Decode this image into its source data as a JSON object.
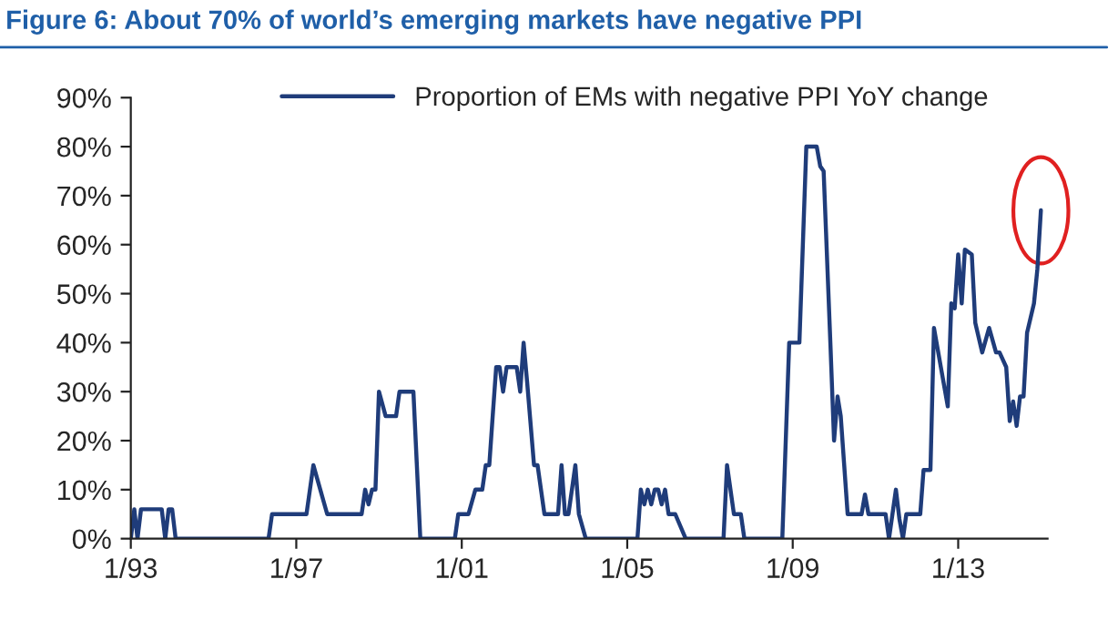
{
  "chart_data": {
    "type": "line",
    "title": "Figure 6: About 70% of world’s emerging markets have negative PPI",
    "series": [
      {
        "name": "Proportion of EMs with negative PPI YoY change",
        "color": "#1f3c7a",
        "x": [
          "1993-01",
          "1993-02",
          "1993-03",
          "1993-04",
          "1993-10",
          "1993-11",
          "1993-12",
          "1994-01",
          "1994-02",
          "1996-05",
          "1996-06",
          "1997-04",
          "1997-06",
          "1997-08",
          "1997-10",
          "1998-08",
          "1998-09",
          "1998-10",
          "1998-11",
          "1998-12",
          "1999-01",
          "1999-03",
          "1999-06",
          "1999-07",
          "1999-11",
          "2000-01",
          "2000-11",
          "2000-12",
          "2001-03",
          "2001-05",
          "2001-07",
          "2001-08",
          "2001-09",
          "2001-10",
          "2001-11",
          "2001-12",
          "2002-01",
          "2002-02",
          "2002-05",
          "2002-06",
          "2002-07",
          "2002-08",
          "2002-10",
          "2002-11",
          "2003-01",
          "2003-05",
          "2003-06",
          "2003-07",
          "2003-08",
          "2003-10",
          "2003-11",
          "2004-01",
          "2005-04",
          "2005-05",
          "2005-06",
          "2005-07",
          "2005-08",
          "2005-09",
          "2005-10",
          "2005-11",
          "2005-12",
          "2006-01",
          "2006-03",
          "2006-06",
          "2007-05",
          "2007-06",
          "2007-08",
          "2007-10",
          "2007-11",
          "2008-10",
          "2008-12",
          "2009-03",
          "2009-05",
          "2009-08",
          "2009-09",
          "2009-10",
          "2009-12",
          "2010-01",
          "2010-02",
          "2010-03",
          "2010-05",
          "2010-09",
          "2010-10",
          "2010-11",
          "2011-04",
          "2011-05",
          "2011-07",
          "2011-08",
          "2011-09",
          "2011-10",
          "2012-02",
          "2012-03",
          "2012-05",
          "2012-06",
          "2012-08",
          "2012-10",
          "2012-11",
          "2012-12",
          "2013-01",
          "2013-02",
          "2013-03",
          "2013-05",
          "2013-06",
          "2013-08",
          "2013-10",
          "2013-12",
          "2014-01",
          "2014-03",
          "2014-04",
          "2014-05",
          "2014-06",
          "2014-07",
          "2014-08",
          "2014-09",
          "2014-11",
          "2014-12",
          "2015-01"
        ],
        "values": [
          0,
          6,
          0,
          6,
          6,
          0,
          6,
          6,
          0,
          0,
          5,
          5,
          15,
          10,
          5,
          5,
          10,
          7,
          10,
          10,
          30,
          25,
          25,
          30,
          30,
          0,
          0,
          5,
          5,
          10,
          10,
          15,
          15,
          25,
          35,
          35,
          30,
          35,
          35,
          30,
          40,
          32,
          15,
          15,
          5,
          5,
          15,
          5,
          5,
          15,
          5,
          0,
          0,
          10,
          7,
          10,
          7,
          10,
          10,
          7,
          10,
          5,
          5,
          0,
          0,
          15,
          5,
          5,
          0,
          0,
          40,
          40,
          80,
          80,
          76,
          75,
          39,
          20,
          29,
          25,
          5,
          5,
          9,
          5,
          5,
          0,
          10,
          4,
          0,
          5,
          5,
          14,
          14,
          43,
          35,
          27,
          48,
          47,
          58,
          48,
          59,
          58,
          44,
          38,
          43,
          38,
          38,
          35,
          24,
          28,
          23,
          29,
          29,
          42,
          48,
          55,
          67
        ]
      }
    ],
    "xlim": [
      "1993-01",
      "2015-03"
    ],
    "xticks": [
      {
        "value": "1993-01",
        "label": "1/93"
      },
      {
        "value": "1997-01",
        "label": "1/97"
      },
      {
        "value": "2001-01",
        "label": "1/01"
      },
      {
        "value": "2005-01",
        "label": "1/05"
      },
      {
        "value": "2009-01",
        "label": "1/09"
      },
      {
        "value": "2013-01",
        "label": "1/13"
      }
    ],
    "ylim": [
      0,
      90
    ],
    "yticks": [
      {
        "value": 0,
        "label": "0%"
      },
      {
        "value": 10,
        "label": "10%"
      },
      {
        "value": 20,
        "label": "20%"
      },
      {
        "value": 30,
        "label": "30%"
      },
      {
        "value": 40,
        "label": "40%"
      },
      {
        "value": 50,
        "label": "50%"
      },
      {
        "value": 60,
        "label": "60%"
      },
      {
        "value": 70,
        "label": "70%"
      },
      {
        "value": 80,
        "label": "80%"
      },
      {
        "value": 90,
        "label": "90%"
      }
    ],
    "grid": false,
    "legend": "top",
    "line_style": "solid",
    "marker": "none"
  }
}
